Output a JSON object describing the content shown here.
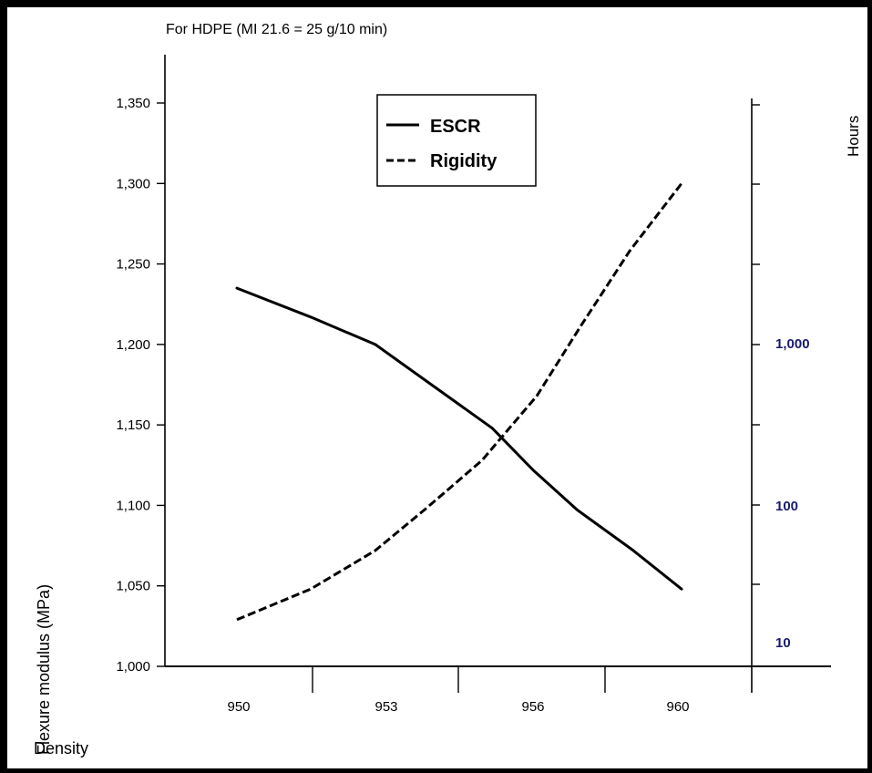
{
  "chart_data": {
    "type": "line",
    "title": "For HDPE (MI 21.6 = 25 g/10 min)",
    "xlabel": "Density",
    "ylabel": "Flexure modulus (MPa)",
    "y2label": "Hours",
    "categories": [
      "950",
      "953",
      "956",
      "960"
    ],
    "y_ticks": [
      "1,000",
      "1,050",
      "1,100",
      "1,150",
      "1,200",
      "1,250",
      "1,300",
      "1,350"
    ],
    "ylim": [
      1000,
      1360
    ],
    "y2_scale": "log",
    "y2_ticks": [
      "10",
      "100",
      "1,000"
    ],
    "y2_tick_color": "#1a1a6e",
    "legend_position": "top-center",
    "series": [
      {
        "name": "ESCR",
        "style": "solid",
        "axis": "right",
        "x": [
          949.9,
          951.5,
          952.9,
          953.7,
          955.2,
          956.0,
          957.2,
          958.7,
          960.0
        ],
        "y": [
          1235,
          1217,
          1200,
          1182,
          1148,
          1122,
          1097,
          1072,
          1048
        ]
      },
      {
        "name": "Rigidity",
        "style": "dashed",
        "axis": "left",
        "x": [
          949.9,
          951.5,
          952.9,
          953.9,
          955.0,
          956.1,
          957.3,
          958.6,
          960.0
        ],
        "y": [
          1029,
          1048,
          1072,
          1098,
          1128,
          1168,
          1212,
          1258,
          1300
        ]
      }
    ]
  }
}
